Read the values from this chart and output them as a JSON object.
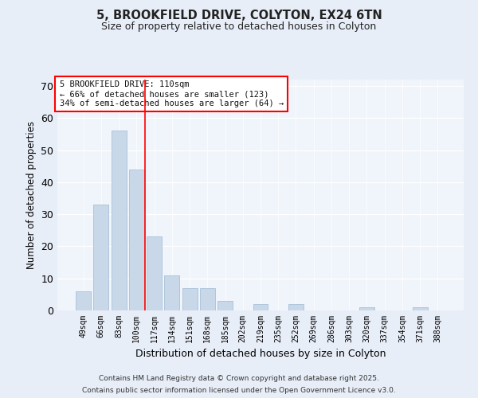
{
  "title_line1": "5, BROOKFIELD DRIVE, COLYTON, EX24 6TN",
  "title_line2": "Size of property relative to detached houses in Colyton",
  "xlabel": "Distribution of detached houses by size in Colyton",
  "ylabel": "Number of detached properties",
  "categories": [
    "49sqm",
    "66sqm",
    "83sqm",
    "100sqm",
    "117sqm",
    "134sqm",
    "151sqm",
    "168sqm",
    "185sqm",
    "202sqm",
    "219sqm",
    "235sqm",
    "252sqm",
    "269sqm",
    "286sqm",
    "303sqm",
    "320sqm",
    "337sqm",
    "354sqm",
    "371sqm",
    "388sqm"
  ],
  "values": [
    6,
    33,
    56,
    44,
    23,
    11,
    7,
    7,
    3,
    0,
    2,
    0,
    2,
    0,
    0,
    0,
    1,
    0,
    0,
    1,
    0
  ],
  "bar_color": "#c8d8e8",
  "bar_edgecolor": "#a8c0d8",
  "bar_linewidth": 0.6,
  "ref_line_index": 3,
  "ref_line_color": "red",
  "ref_line_linewidth": 1.2,
  "ylim": [
    0,
    72
  ],
  "yticks": [
    0,
    10,
    20,
    30,
    40,
    50,
    60,
    70
  ],
  "annotation_title": "5 BROOKFIELD DRIVE: 110sqm",
  "annotation_line2": "← 66% of detached houses are smaller (123)",
  "annotation_line3": "34% of semi-detached houses are larger (64) →",
  "annotation_box_color": "red",
  "annotation_fill_color": "white",
  "bg_color": "#e8eef8",
  "plot_bg_color": "#f0f4fb",
  "grid_color": "#ffffff",
  "footer_line1": "Contains HM Land Registry data © Crown copyright and database right 2025.",
  "footer_line2": "Contains public sector information licensed under the Open Government Licence v3.0."
}
